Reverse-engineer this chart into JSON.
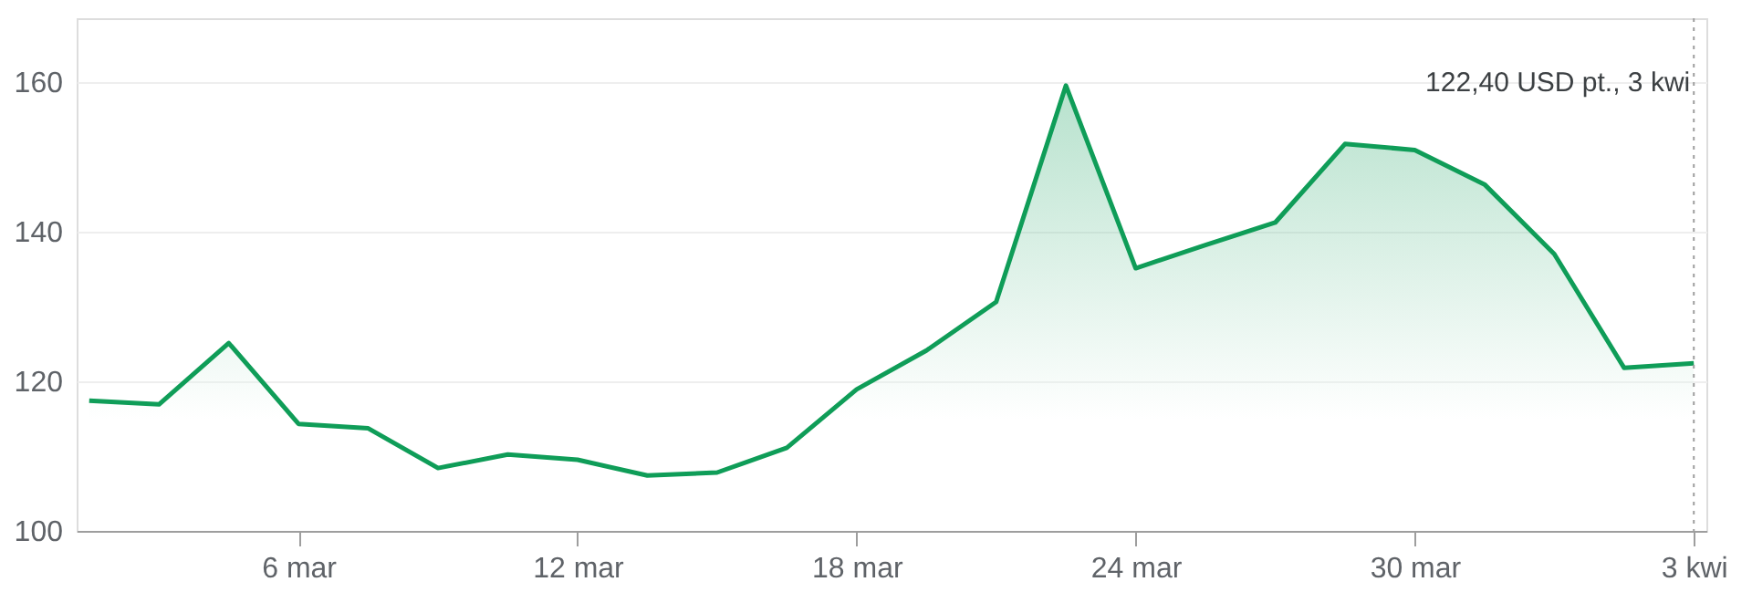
{
  "chart_data": {
    "type": "area",
    "categories": [
      null,
      null,
      null,
      "6 mar",
      null,
      null,
      null,
      "12 mar",
      null,
      null,
      null,
      "18 mar",
      null,
      null,
      null,
      "24 mar",
      null,
      null,
      null,
      "30 mar",
      null,
      null,
      null,
      "3 kwi"
    ],
    "series": [
      {
        "color": "#0f9d58",
        "values": [
          117.4,
          116.9,
          125.1,
          114.3,
          113.7,
          108.4,
          110.2,
          109.5,
          107.4,
          107.8,
          111.1,
          118.9,
          124.1,
          130.6,
          159.5,
          135.1,
          138.2,
          141.2,
          151.7,
          150.9,
          146.3,
          137.0,
          121.8,
          122.4
        ]
      }
    ],
    "ylim": [
      100,
      168.5
    ],
    "yticks": [
      100,
      120,
      140,
      160
    ],
    "grid": "y",
    "marker": "none",
    "line_style": "solid",
    "ref_lines": [
      {
        "axis": "x",
        "value": "3 kwi",
        "label": null,
        "color": "#9e9e9e",
        "line_style": "dotted"
      }
    ],
    "annotations": [
      "122,40 USD  pt., 3 kwi"
    ]
  }
}
